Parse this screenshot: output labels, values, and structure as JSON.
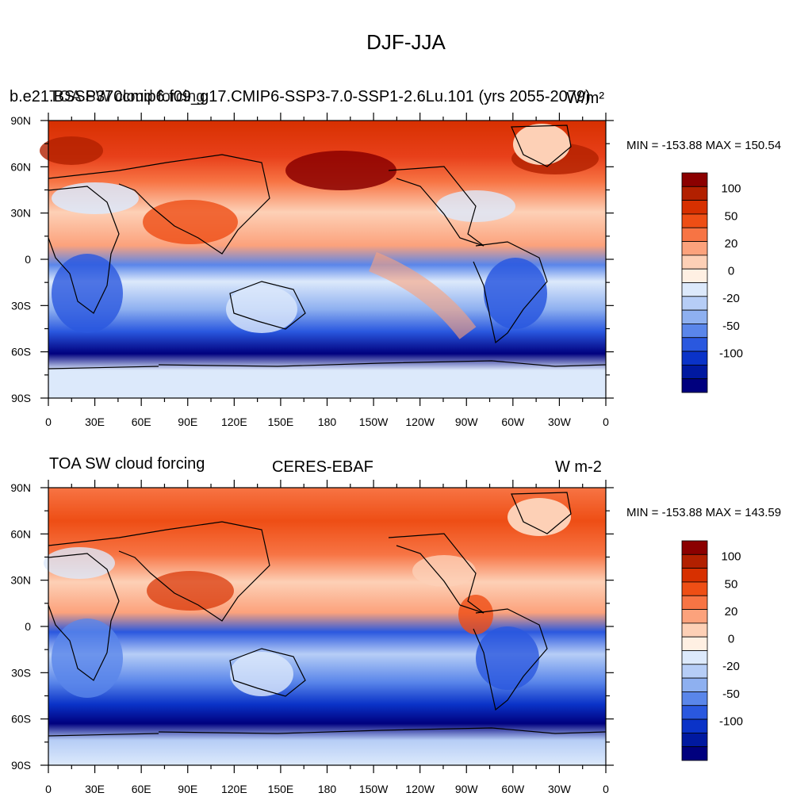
{
  "figure": {
    "title": "DJF-JJA"
  },
  "axes": {
    "lat_labels": [
      "90N",
      "60N",
      "30N",
      "0",
      "30S",
      "60S",
      "90S"
    ],
    "lon_labels": [
      "0",
      "30E",
      "60E",
      "90E",
      "120E",
      "150E",
      "180",
      "150W",
      "120W",
      "90W",
      "60W",
      "30W",
      "0"
    ]
  },
  "colorbar": {
    "colors": [
      "#8b0000",
      "#b22000",
      "#d73000",
      "#ee4e15",
      "#f77444",
      "#fca27c",
      "#fdd0b6",
      "#fff0e3",
      "#dce9fb",
      "#b6cdf6",
      "#8eb0f0",
      "#5a86ea",
      "#2a58df",
      "#0a33c8",
      "#0019a0",
      "#00007e"
    ],
    "labels": [
      "100",
      "50",
      "20",
      "0",
      "-20",
      "-50",
      "-100"
    ]
  },
  "panels": [
    {
      "left_label": "b.e21.BSSP370cmip6.f09_g17.CMIP6-SSP3-7.0-SSP1-2.6Lu.101 (yrs 2055-2079)",
      "left_label_overlap": "TOA SW cloud forcing",
      "center_label": "",
      "right_label": "W/m²",
      "min_max": "MIN = -153.88 MAX = 150.54"
    },
    {
      "left_label": "TOA SW cloud forcing",
      "center_label": "CERES-EBAF",
      "right_label": "W m-2",
      "min_max": "MIN = -153.88 MAX = 143.59"
    }
  ]
}
